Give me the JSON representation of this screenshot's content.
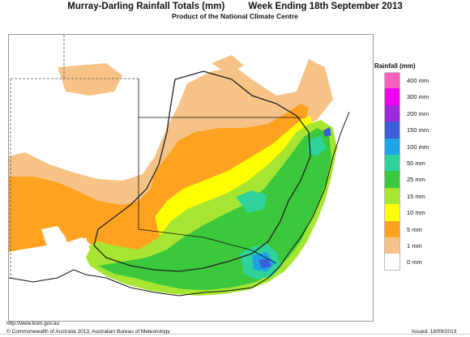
{
  "header": {
    "title_left": "Murray-Darling Rainfall Totals (mm)",
    "title_right": "Week Ending 18th September 2013",
    "subtitle": "Product of the National Climate Centre"
  },
  "legend": {
    "title": "Rainfall (mm)",
    "items": [
      {
        "label": "400 mm",
        "color": "#ff5fbf"
      },
      {
        "label": "300 mm",
        "color": "#f200f2"
      },
      {
        "label": "200 mm",
        "color": "#9b2bd8"
      },
      {
        "label": "150 mm",
        "color": "#3c5fd8"
      },
      {
        "label": "100 mm",
        "color": "#1fa2e6"
      },
      {
        "label": "50 mm",
        "color": "#2fd39a"
      },
      {
        "label": "25 mm",
        "color": "#3cc83c"
      },
      {
        "label": "15 mm",
        "color": "#a6e632"
      },
      {
        "label": "10 mm",
        "color": "#ffff00"
      },
      {
        "label": "5 mm",
        "color": "#ffa21f"
      },
      {
        "label": "1 mm",
        "color": "#f7c285"
      },
      {
        "label": "0 mm",
        "color": "#ffffff"
      }
    ]
  },
  "footer": {
    "url": "http://www.bom.gov.au",
    "copyright": "© Commonwealth of Australia 2013, Australian Bureau of Meteorology",
    "issued": "Issued: 18/09/2013"
  }
}
